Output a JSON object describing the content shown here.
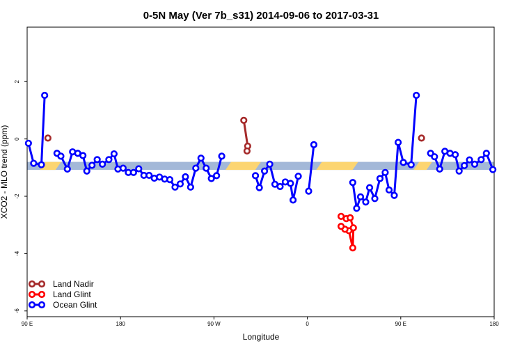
{
  "chart_data": {
    "type": "line",
    "title": "0-5N May (Ver 7b_s31)   2014-09-06 to 2017-03-31",
    "xlabel": "Longitude",
    "ylabel": "XCO2 - MLO trend (ppm)",
    "xlim": [
      0,
      360
    ],
    "ylim": [
      -6.2,
      3.9
    ],
    "x_ticks": [
      {
        "value": 0,
        "label": "90 E"
      },
      {
        "value": 72,
        "label": "180"
      },
      {
        "value": 144,
        "label": "90 W"
      },
      {
        "value": 216,
        "label": "0"
      },
      {
        "value": 288,
        "label": "90 E"
      },
      {
        "value": 360,
        "label": "180"
      }
    ],
    "y_ticks": [
      {
        "value": -6,
        "label": "-6"
      },
      {
        "value": -4,
        "label": "-4"
      },
      {
        "value": -2,
        "label": "-2"
      },
      {
        "value": 0,
        "label": "0"
      },
      {
        "value": 2,
        "label": "2"
      }
    ],
    "band": {
      "y_min": -1.08,
      "y_max": -0.8,
      "base_color": "#a3b8d8",
      "highlight_color": "#fcd571",
      "highlight_segments": [
        [
          12,
          24
        ],
        [
          155,
          178
        ],
        [
          225,
          253
        ],
        [
          300,
          310
        ]
      ]
    },
    "series": [
      {
        "name": "Land Nadir",
        "color": "#a52a2a",
        "segments": [
          [
            [
              16,
              0.03
            ]
          ],
          [
            [
              167,
              0.65
            ],
            [
              170,
              -0.25
            ],
            [
              169.5,
              -0.42
            ]
          ],
          [
            [
              304,
              0.03
            ]
          ]
        ]
      },
      {
        "name": "Land Glint",
        "color": "#ff0000",
        "segments": [
          [
            [
              242,
              -2.7
            ],
            [
              246,
              -2.78
            ],
            [
              249,
              -2.75
            ],
            [
              251.5,
              -3.1
            ],
            [
              251,
              -3.8
            ],
            [
              248,
              -3.2
            ],
            [
              245,
              -3.15
            ],
            [
              242,
              -3.05
            ]
          ]
        ]
      },
      {
        "name": "Ocean Glint",
        "color": "#0000ff",
        "segments": [
          [
            [
              1,
              -0.15
            ],
            [
              5,
              -0.85
            ],
            [
              11,
              -0.9
            ],
            [
              13.5,
              1.52
            ]
          ],
          [
            [
              23,
              -0.5
            ],
            [
              26,
              -0.6
            ],
            [
              31,
              -1.05
            ],
            [
              35,
              -0.45
            ],
            [
              39,
              -0.5
            ],
            [
              43,
              -0.58
            ],
            [
              46,
              -1.12
            ],
            [
              50,
              -0.92
            ],
            [
              54,
              -0.72
            ],
            [
              58,
              -0.88
            ],
            [
              63,
              -0.72
            ],
            [
              67,
              -0.52
            ],
            [
              70,
              -1.05
            ],
            [
              74,
              -1.02
            ],
            [
              78,
              -1.17
            ],
            [
              82,
              -1.17
            ],
            [
              86,
              -1.04
            ],
            [
              90,
              -1.27
            ],
            [
              94,
              -1.27
            ],
            [
              98,
              -1.37
            ],
            [
              102,
              -1.33
            ],
            [
              106,
              -1.4
            ],
            [
              110,
              -1.42
            ],
            [
              114,
              -1.68
            ],
            [
              118,
              -1.57
            ],
            [
              122,
              -1.32
            ],
            [
              126,
              -1.68
            ],
            [
              130,
              -1.02
            ],
            [
              134,
              -0.67
            ],
            [
              138,
              -1.02
            ],
            [
              142,
              -1.38
            ],
            [
              146,
              -1.28
            ],
            [
              150,
              -0.6
            ]
          ]
        ]
      }
    ],
    "ocean_segments_extra": [
      [
        [
          176,
          -1.28
        ],
        [
          179,
          -1.7
        ],
        [
          183,
          -1.12
        ],
        [
          187,
          -0.88
        ],
        [
          191,
          -1.58
        ],
        [
          195,
          -1.66
        ],
        [
          199,
          -1.5
        ],
        [
          203,
          -1.55
        ],
        [
          205,
          -2.13
        ],
        [
          209,
          -1.3
        ]
      ],
      [
        [
          217,
          -1.82
        ],
        [
          221,
          -0.2
        ]
      ],
      [
        [
          251,
          -1.52
        ],
        [
          254,
          -2.42
        ],
        [
          257,
          -2.02
        ],
        [
          261,
          -2.2
        ],
        [
          264,
          -1.7
        ],
        [
          268,
          -2.08
        ],
        [
          272,
          -1.38
        ],
        [
          276,
          -1.17
        ],
        [
          279,
          -1.78
        ],
        [
          283,
          -1.97
        ],
        [
          286,
          -0.12
        ],
        [
          290,
          -0.82
        ],
        [
          296,
          -0.9
        ],
        [
          300,
          1.52
        ]
      ],
      [
        [
          311,
          -0.5
        ],
        [
          314,
          -0.62
        ],
        [
          318,
          -1.05
        ],
        [
          322,
          -0.43
        ],
        [
          326,
          -0.5
        ],
        [
          330,
          -0.55
        ],
        [
          333,
          -1.12
        ],
        [
          337,
          -0.93
        ],
        [
          341,
          -0.73
        ],
        [
          345,
          -0.88
        ],
        [
          350,
          -0.72
        ],
        [
          354,
          -0.5
        ],
        [
          359,
          -1.07
        ]
      ]
    ],
    "legend": {
      "position": "bottom-left",
      "entries": [
        {
          "label": "Land Nadir",
          "color": "#a52a2a"
        },
        {
          "label": "Land Glint",
          "color": "#ff0000"
        },
        {
          "label": "Ocean Glint",
          "color": "#0000ff"
        }
      ]
    },
    "grid": false
  }
}
